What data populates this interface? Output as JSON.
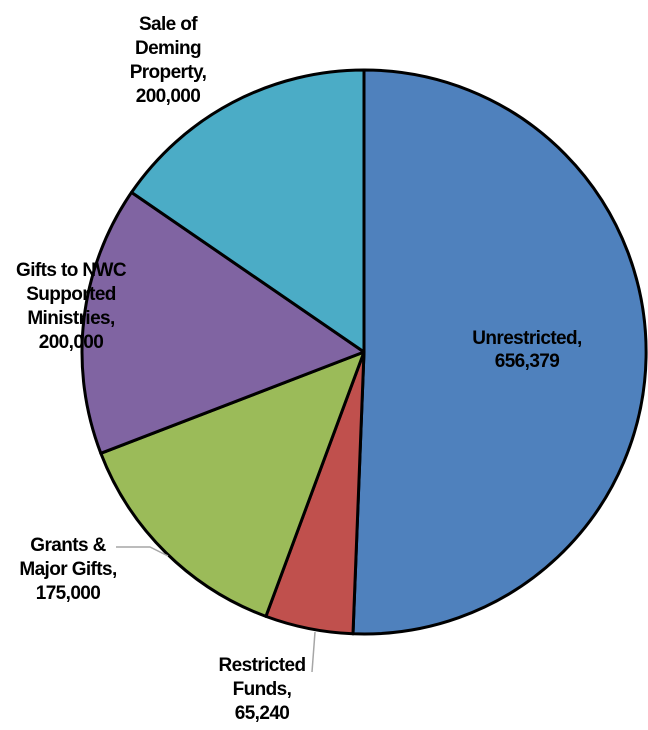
{
  "chart_data": {
    "type": "pie",
    "start_angle_deg": 0,
    "direction": "clockwise",
    "slices": [
      {
        "name": "Unrestricted",
        "value": 656379,
        "value_label": "656,379",
        "color": "#4F81BD",
        "label_lines": [
          "Unrestricted,",
          "656,379"
        ]
      },
      {
        "name": "Restricted Funds",
        "value": 65240,
        "value_label": "65,240",
        "color": "#C0504D",
        "label_lines": [
          "Restricted",
          "Funds,",
          "65,240"
        ]
      },
      {
        "name": "Grants & Major Gifts",
        "value": 175000,
        "value_label": "175,000",
        "color": "#9BBB59",
        "label_lines": [
          "Grants &",
          "Major Gifts,",
          "175,000"
        ]
      },
      {
        "name": "Gifts to NWC Supported Ministries",
        "value": 200000,
        "value_label": "200,000",
        "color": "#8064A2",
        "label_lines": [
          "Gifts to NWC",
          "Supported",
          "Ministries,",
          "200,000"
        ]
      },
      {
        "name": "Sale of Deming Property",
        "value": 200000,
        "value_label": "200,000",
        "color": "#4BACC6",
        "label_lines": [
          "Sale of",
          "Deming",
          "Property,",
          "200,000"
        ]
      }
    ]
  }
}
